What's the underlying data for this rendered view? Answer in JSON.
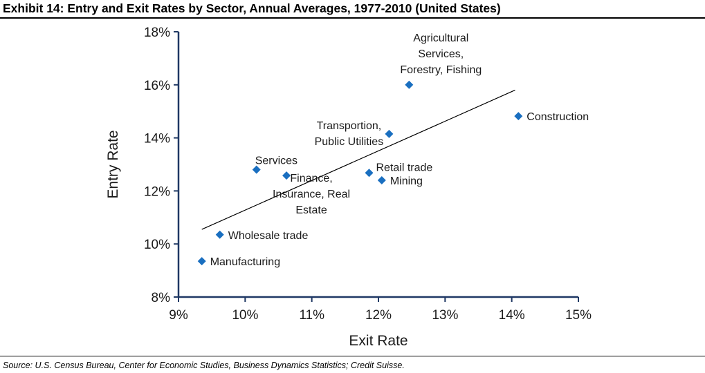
{
  "header": {
    "title": "Exhibit 14: Entry and Exit Rates by Sector, Annual Averages, 1977-2010 (United States)"
  },
  "footer": {
    "source": "Source: U.S. Census Bureau, Center for Economic Studies, Business Dynamics Statistics; Credit Suisse."
  },
  "colors": {
    "marker": "#1a6fc0",
    "axis": "#1f3864",
    "trendline": "#000000",
    "text": "#1a1a1a"
  },
  "chart_data": {
    "type": "scatter",
    "title": "",
    "xlabel": "Exit Rate",
    "ylabel": "Entry Rate",
    "xlim": [
      9,
      15
    ],
    "ylim": [
      8,
      18
    ],
    "x_ticks": [
      "9%",
      "10%",
      "11%",
      "12%",
      "13%",
      "14%",
      "15%"
    ],
    "y_ticks": [
      "8%",
      "10%",
      "12%",
      "14%",
      "16%",
      "18%"
    ],
    "grid": false,
    "legend": "none",
    "points": [
      {
        "label": [
          "Manufacturing"
        ],
        "x": 9.35,
        "y": 9.35,
        "label_pos": "right"
      },
      {
        "label": [
          "Wholesale trade"
        ],
        "x": 9.62,
        "y": 10.35,
        "label_pos": "right"
      },
      {
        "label": [
          "Services"
        ],
        "x": 10.17,
        "y": 12.8,
        "label_pos": "above-right"
      },
      {
        "label": [
          "Finance,",
          "Insurance, Real",
          "Estate"
        ],
        "x": 10.62,
        "y": 12.58,
        "label_pos": "below-right"
      },
      {
        "label": [
          "Retail trade"
        ],
        "x": 11.86,
        "y": 12.68,
        "label_pos": "upper-right"
      },
      {
        "label": [
          "Mining"
        ],
        "x": 12.05,
        "y": 12.4,
        "label_pos": "right"
      },
      {
        "label": [
          "Transportion,",
          "Public Utilities"
        ],
        "x": 12.16,
        "y": 14.15,
        "label_pos": "left"
      },
      {
        "label": [
          "Agricultural",
          "Services,",
          "Forestry, Fishing"
        ],
        "x": 12.46,
        "y": 16.0,
        "label_pos": "above"
      },
      {
        "label": [
          "Construction"
        ],
        "x": 14.1,
        "y": 14.82,
        "label_pos": "right"
      }
    ],
    "trendline": {
      "x": [
        9.35,
        14.05
      ],
      "y": [
        10.55,
        15.8
      ]
    }
  }
}
